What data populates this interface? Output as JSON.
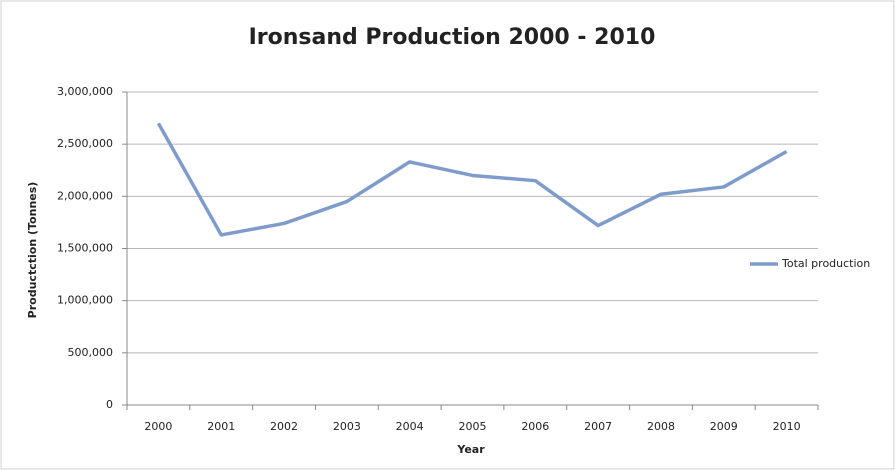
{
  "chart_data": {
    "type": "line",
    "title": "Ironsand Production 2000 - 2010",
    "x_label": "Year",
    "y_label": "Productction (Tonnes)",
    "categories": [
      "2000",
      "2001",
      "2002",
      "2003",
      "2004",
      "2005",
      "2006",
      "2007",
      "2008",
      "2009",
      "2010"
    ],
    "series": [
      {
        "name": "Total production",
        "color": "#7f9bcb",
        "values": [
          2700000,
          1630000,
          1740000,
          1950000,
          2330000,
          2200000,
          2150000,
          1720000,
          2020000,
          2090000,
          2430000
        ]
      }
    ],
    "ylim": [
      0,
      3000000
    ],
    "yticks": [
      0,
      {
        "value": 500000,
        "label": "500,000"
      },
      {
        "value": 1000000,
        "label": "1,000,000"
      },
      {
        "value": 1500000,
        "label": "1,500,000"
      },
      {
        "value": 2000000,
        "label": "2,000,000"
      },
      {
        "value": 2500000,
        "label": "2,500,000"
      },
      {
        "value": 3000000,
        "label": "3,000,000"
      }
    ],
    "grid": true,
    "legend": "right"
  }
}
